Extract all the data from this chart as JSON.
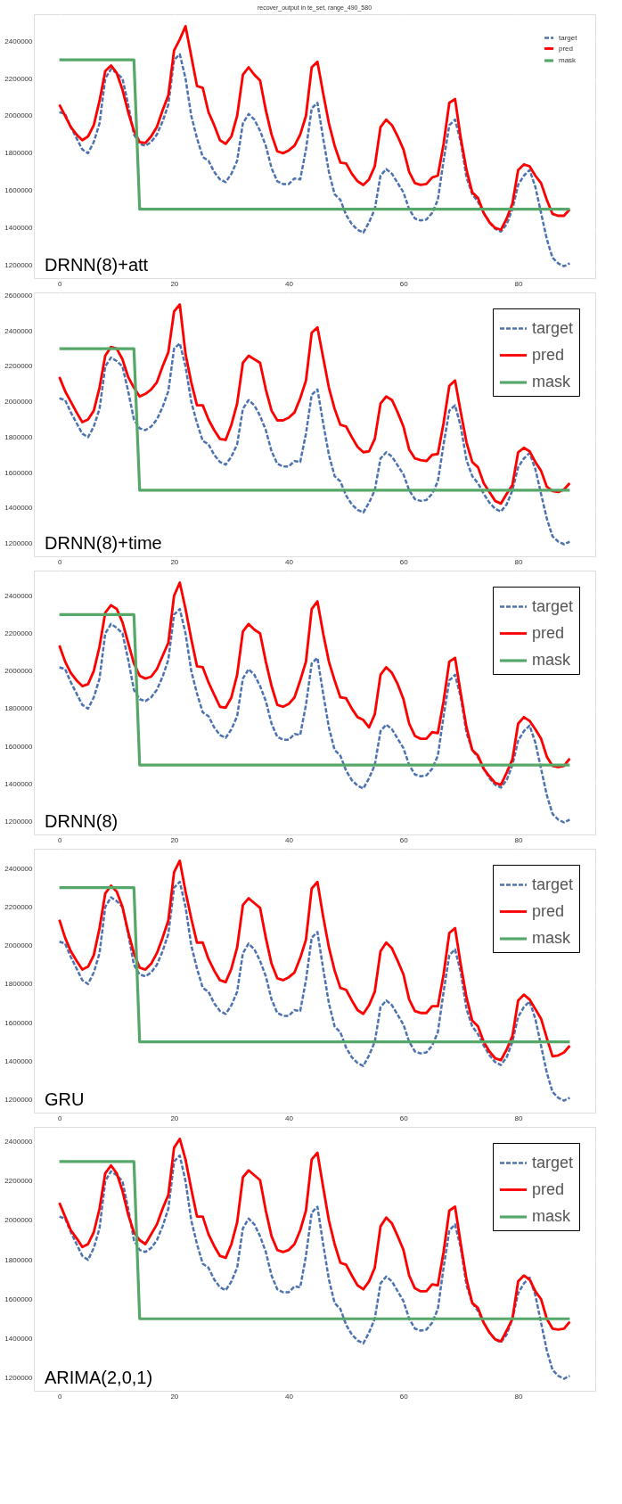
{
  "chart_data": [
    {
      "type": "line",
      "title": "recover_output in te_set, range_490_580",
      "annotations": [
        "DRNN(8)+att"
      ],
      "x": [
        0,
        1,
        2,
        3,
        4,
        5,
        6,
        7,
        8,
        9,
        10,
        11,
        12,
        13,
        14,
        15,
        16,
        17,
        18,
        19,
        20,
        21,
        22,
        23,
        24,
        25,
        26,
        27,
        28,
        29,
        30,
        31,
        32,
        33,
        34,
        35,
        36,
        37,
        38,
        39,
        40,
        41,
        42,
        43,
        44,
        45,
        46,
        47,
        48,
        49,
        50,
        51,
        52,
        53,
        54,
        55,
        56,
        57,
        58,
        59,
        60,
        61,
        62,
        63,
        64,
        65,
        66,
        67,
        68,
        69,
        70,
        71,
        72,
        73,
        74,
        75,
        76,
        77,
        78,
        79,
        80,
        81,
        82,
        83,
        84,
        85,
        86,
        87,
        88,
        89
      ],
      "xlim": [
        -4.45,
        93.45
      ],
      "xticks": [
        0,
        20,
        40,
        60,
        80
      ],
      "ylim": [
        1131000,
        2544000
      ],
      "yticks": [
        1200000,
        1400000,
        1600000,
        1800000,
        2000000,
        2200000,
        2400000
      ],
      "grid": true,
      "legend": "top right",
      "series": [
        {
          "name": "target",
          "color": "#4c72b0",
          "line_style": "dashed",
          "values": [
            2020000,
            2010000,
            1940000,
            1880000,
            1820000,
            1800000,
            1860000,
            1960000,
            2200000,
            2250000,
            2230000,
            2200000,
            2060000,
            1900000,
            1850000,
            1840000,
            1860000,
            1900000,
            1970000,
            2060000,
            2300000,
            2330000,
            2200000,
            2000000,
            1880000,
            1780000,
            1760000,
            1700000,
            1660000,
            1645000,
            1690000,
            1760000,
            1960000,
            2010000,
            1980000,
            1920000,
            1840000,
            1720000,
            1650000,
            1635000,
            1635000,
            1665000,
            1660000,
            1820000,
            2040000,
            2070000,
            1880000,
            1700000,
            1580000,
            1550000,
            1470000,
            1420000,
            1390000,
            1375000,
            1430000,
            1500000,
            1680000,
            1715000,
            1690000,
            1640000,
            1590000,
            1500000,
            1450000,
            1440000,
            1445000,
            1480000,
            1550000,
            1760000,
            1950000,
            1980000,
            1860000,
            1670000,
            1580000,
            1540000,
            1480000,
            1430000,
            1395000,
            1380000,
            1420000,
            1500000,
            1630000,
            1680000,
            1710000,
            1620000,
            1480000,
            1340000,
            1240000,
            1210000,
            1195000,
            1210000
          ]
        },
        {
          "name": "pred",
          "color": "#ff0000",
          "line_style": "solid",
          "values": [
            2060000,
            2000000,
            1940000,
            1900000,
            1870000,
            1890000,
            1950000,
            2080000,
            2240000,
            2270000,
            2230000,
            2140000,
            2020000,
            1920000,
            1860000,
            1855000,
            1890000,
            1940000,
            2030000,
            2110000,
            2350000,
            2410000,
            2480000,
            2320000,
            2160000,
            2150000,
            2020000,
            1950000,
            1870000,
            1850000,
            1890000,
            2000000,
            2220000,
            2260000,
            2220000,
            2190000,
            2030000,
            1900000,
            1810000,
            1800000,
            1815000,
            1840000,
            1900000,
            2000000,
            2260000,
            2290000,
            2120000,
            1960000,
            1840000,
            1750000,
            1745000,
            1690000,
            1650000,
            1630000,
            1660000,
            1730000,
            1940000,
            1980000,
            1950000,
            1890000,
            1820000,
            1700000,
            1640000,
            1630000,
            1635000,
            1670000,
            1680000,
            1850000,
            2070000,
            2090000,
            1880000,
            1710000,
            1590000,
            1560000,
            1480000,
            1430000,
            1400000,
            1390000,
            1450000,
            1530000,
            1710000,
            1740000,
            1730000,
            1680000,
            1640000,
            1550000,
            1475000,
            1465000,
            1465000,
            1500000
          ]
        },
        {
          "name": "mask",
          "color": "#55a868",
          "line_style": "solid",
          "values": [
            2300000,
            2300000,
            2300000,
            2300000,
            2300000,
            2300000,
            2300000,
            2300000,
            2300000,
            2300000,
            2300000,
            2300000,
            2300000,
            2300000,
            1500000,
            1500000,
            1500000,
            1500000,
            1500000,
            1500000,
            1500000,
            1500000,
            1500000,
            1500000,
            1500000,
            1500000,
            1500000,
            1500000,
            1500000,
            1500000,
            1500000,
            1500000,
            1500000,
            1500000,
            1500000,
            1500000,
            1500000,
            1500000,
            1500000,
            1500000,
            1500000,
            1500000,
            1500000,
            1500000,
            1500000,
            1500000,
            1500000,
            1500000,
            1500000,
            1500000,
            1500000,
            1500000,
            1500000,
            1500000,
            1500000,
            1500000,
            1500000,
            1500000,
            1500000,
            1500000,
            1500000,
            1500000,
            1500000,
            1500000,
            1500000,
            1500000,
            1500000,
            1500000,
            1500000,
            1500000,
            1500000,
            1500000,
            1500000,
            1500000,
            1500000,
            1500000,
            1500000,
            1500000,
            1500000,
            1500000,
            1500000,
            1500000,
            1500000,
            1500000,
            1500000,
            1500000,
            1500000,
            1500000,
            1500000,
            1500000
          ]
        }
      ]
    },
    {
      "type": "line",
      "annotations": [
        "DRNN(8)+time"
      ],
      "x": [
        0,
        1,
        2,
        3,
        4,
        5,
        6,
        7,
        8,
        9,
        10,
        11,
        12,
        13,
        14,
        15,
        16,
        17,
        18,
        19,
        20,
        21,
        22,
        23,
        24,
        25,
        26,
        27,
        28,
        29,
        30,
        31,
        32,
        33,
        34,
        35,
        36,
        37,
        38,
        39,
        40,
        41,
        42,
        43,
        44,
        45,
        46,
        47,
        48,
        49,
        50,
        51,
        52,
        53,
        54,
        55,
        56,
        57,
        58,
        59,
        60,
        61,
        62,
        63,
        64,
        65,
        66,
        67,
        68,
        69,
        70,
        71,
        72,
        73,
        74,
        75,
        76,
        77,
        78,
        79,
        80,
        81,
        82,
        83,
        84,
        85,
        86,
        87,
        88,
        89
      ],
      "xlim": [
        -4.45,
        93.45
      ],
      "xticks": [
        0,
        20,
        40,
        60,
        80
      ],
      "ylim": [
        1127000,
        2618000
      ],
      "yticks": [
        1200000,
        1400000,
        1600000,
        1800000,
        2000000,
        2200000,
        2400000,
        2600000
      ],
      "grid": true,
      "legend": "top right",
      "series": [
        {
          "name": "target",
          "color": "#4c72b0",
          "line_style": "dashed",
          "values": [
            2020000,
            2010000,
            1940000,
            1880000,
            1820000,
            1800000,
            1860000,
            1960000,
            2200000,
            2250000,
            2230000,
            2200000,
            2060000,
            1900000,
            1850000,
            1840000,
            1860000,
            1900000,
            1970000,
            2060000,
            2300000,
            2330000,
            2200000,
            2000000,
            1880000,
            1780000,
            1760000,
            1700000,
            1660000,
            1645000,
            1690000,
            1760000,
            1960000,
            2010000,
            1980000,
            1920000,
            1840000,
            1720000,
            1650000,
            1635000,
            1635000,
            1665000,
            1660000,
            1820000,
            2040000,
            2070000,
            1880000,
            1700000,
            1580000,
            1550000,
            1470000,
            1420000,
            1390000,
            1375000,
            1430000,
            1500000,
            1680000,
            1715000,
            1690000,
            1640000,
            1590000,
            1500000,
            1450000,
            1440000,
            1445000,
            1480000,
            1550000,
            1760000,
            1950000,
            1980000,
            1860000,
            1670000,
            1580000,
            1540000,
            1480000,
            1430000,
            1395000,
            1380000,
            1420000,
            1500000,
            1630000,
            1680000,
            1710000,
            1620000,
            1480000,
            1340000,
            1240000,
            1210000,
            1195000,
            1210000
          ]
        },
        {
          "name": "pred",
          "color": "#ff0000",
          "line_style": "solid",
          "values": [
            2140000,
            2060000,
            2000000,
            1940000,
            1885000,
            1900000,
            1950000,
            2080000,
            2260000,
            2310000,
            2300000,
            2240000,
            2140000,
            2080000,
            2030000,
            2045000,
            2070000,
            2110000,
            2200000,
            2280000,
            2510000,
            2550000,
            2270000,
            2110000,
            1980000,
            1980000,
            1900000,
            1840000,
            1790000,
            1785000,
            1870000,
            1990000,
            2220000,
            2260000,
            2240000,
            2220000,
            2070000,
            1950000,
            1895000,
            1895000,
            1910000,
            1940000,
            2020000,
            2120000,
            2390000,
            2420000,
            2250000,
            2080000,
            1960000,
            1870000,
            1860000,
            1800000,
            1745000,
            1715000,
            1720000,
            1790000,
            1990000,
            2030000,
            2010000,
            1940000,
            1860000,
            1730000,
            1680000,
            1670000,
            1665000,
            1700000,
            1705000,
            1880000,
            2090000,
            2120000,
            1940000,
            1770000,
            1660000,
            1630000,
            1540000,
            1490000,
            1440000,
            1425000,
            1480000,
            1530000,
            1715000,
            1740000,
            1720000,
            1660000,
            1610000,
            1520000,
            1495000,
            1490000,
            1505000,
            1540000
          ]
        },
        {
          "name": "mask",
          "color": "#55a868",
          "line_style": "solid",
          "values": [
            2300000,
            2300000,
            2300000,
            2300000,
            2300000,
            2300000,
            2300000,
            2300000,
            2300000,
            2300000,
            2300000,
            2300000,
            2300000,
            2300000,
            1500000,
            1500000,
            1500000,
            1500000,
            1500000,
            1500000,
            1500000,
            1500000,
            1500000,
            1500000,
            1500000,
            1500000,
            1500000,
            1500000,
            1500000,
            1500000,
            1500000,
            1500000,
            1500000,
            1500000,
            1500000,
            1500000,
            1500000,
            1500000,
            1500000,
            1500000,
            1500000,
            1500000,
            1500000,
            1500000,
            1500000,
            1500000,
            1500000,
            1500000,
            1500000,
            1500000,
            1500000,
            1500000,
            1500000,
            1500000,
            1500000,
            1500000,
            1500000,
            1500000,
            1500000,
            1500000,
            1500000,
            1500000,
            1500000,
            1500000,
            1500000,
            1500000,
            1500000,
            1500000,
            1500000,
            1500000,
            1500000,
            1500000,
            1500000,
            1500000,
            1500000,
            1500000,
            1500000,
            1500000,
            1500000,
            1500000,
            1500000,
            1500000,
            1500000,
            1500000,
            1500000,
            1500000,
            1500000,
            1500000,
            1500000,
            1500000
          ]
        }
      ]
    },
    {
      "type": "line",
      "annotations": [
        "DRNN(8)"
      ],
      "x": [
        0,
        1,
        2,
        3,
        4,
        5,
        6,
        7,
        8,
        9,
        10,
        11,
        12,
        13,
        14,
        15,
        16,
        17,
        18,
        19,
        20,
        21,
        22,
        23,
        24,
        25,
        26,
        27,
        28,
        29,
        30,
        31,
        32,
        33,
        34,
        35,
        36,
        37,
        38,
        39,
        40,
        41,
        42,
        43,
        44,
        45,
        46,
        47,
        48,
        49,
        50,
        51,
        52,
        53,
        54,
        55,
        56,
        57,
        58,
        59,
        60,
        61,
        62,
        63,
        64,
        65,
        66,
        67,
        68,
        69,
        70,
        71,
        72,
        73,
        74,
        75,
        76,
        77,
        78,
        79,
        80,
        81,
        82,
        83,
        84,
        85,
        86,
        87,
        88,
        89
      ],
      "xlim": [
        -4.45,
        93.45
      ],
      "xticks": [
        0,
        20,
        40,
        60,
        80
      ],
      "ylim": [
        1131000,
        2534000
      ],
      "yticks": [
        1200000,
        1400000,
        1600000,
        1800000,
        2000000,
        2200000,
        2400000
      ],
      "grid": true,
      "legend": "top right",
      "series": [
        {
          "name": "target",
          "color": "#4c72b0",
          "line_style": "dashed",
          "values": [
            2020000,
            2010000,
            1940000,
            1880000,
            1820000,
            1800000,
            1860000,
            1960000,
            2200000,
            2250000,
            2230000,
            2200000,
            2060000,
            1900000,
            1850000,
            1840000,
            1860000,
            1900000,
            1970000,
            2060000,
            2300000,
            2330000,
            2200000,
            2000000,
            1880000,
            1780000,
            1760000,
            1700000,
            1660000,
            1645000,
            1690000,
            1760000,
            1960000,
            2010000,
            1980000,
            1920000,
            1840000,
            1720000,
            1650000,
            1635000,
            1635000,
            1665000,
            1660000,
            1820000,
            2040000,
            2070000,
            1880000,
            1700000,
            1580000,
            1550000,
            1470000,
            1420000,
            1390000,
            1375000,
            1430000,
            1500000,
            1680000,
            1715000,
            1690000,
            1640000,
            1590000,
            1500000,
            1450000,
            1440000,
            1445000,
            1480000,
            1550000,
            1760000,
            1950000,
            1980000,
            1860000,
            1670000,
            1580000,
            1540000,
            1480000,
            1430000,
            1395000,
            1380000,
            1420000,
            1500000,
            1630000,
            1680000,
            1710000,
            1620000,
            1480000,
            1340000,
            1240000,
            1210000,
            1195000,
            1210000
          ]
        },
        {
          "name": "pred",
          "color": "#ff0000",
          "line_style": "solid",
          "values": [
            2136000,
            2050000,
            1990000,
            1950000,
            1920000,
            1930000,
            2000000,
            2130000,
            2310000,
            2350000,
            2330000,
            2260000,
            2150000,
            2040000,
            1975000,
            1960000,
            1970000,
            2010000,
            2080000,
            2150000,
            2400000,
            2470000,
            2330000,
            2170000,
            2025000,
            2020000,
            1940000,
            1875000,
            1810000,
            1805000,
            1860000,
            1980000,
            2210000,
            2250000,
            2220000,
            2200000,
            2050000,
            1920000,
            1820000,
            1810000,
            1825000,
            1860000,
            1950000,
            2050000,
            2330000,
            2370000,
            2200000,
            2050000,
            1950000,
            1860000,
            1855000,
            1800000,
            1755000,
            1740000,
            1700000,
            1770000,
            1980000,
            2020000,
            1990000,
            1930000,
            1850000,
            1720000,
            1655000,
            1640000,
            1640000,
            1675000,
            1670000,
            1840000,
            2050000,
            2070000,
            1880000,
            1700000,
            1580000,
            1550000,
            1480000,
            1440000,
            1405000,
            1395000,
            1460000,
            1530000,
            1720000,
            1755000,
            1735000,
            1690000,
            1640000,
            1545000,
            1495000,
            1490000,
            1495000,
            1535000
          ]
        },
        {
          "name": "mask",
          "color": "#55a868",
          "line_style": "solid",
          "values": [
            2300000,
            2300000,
            2300000,
            2300000,
            2300000,
            2300000,
            2300000,
            2300000,
            2300000,
            2300000,
            2300000,
            2300000,
            2300000,
            2300000,
            1500000,
            1500000,
            1500000,
            1500000,
            1500000,
            1500000,
            1500000,
            1500000,
            1500000,
            1500000,
            1500000,
            1500000,
            1500000,
            1500000,
            1500000,
            1500000,
            1500000,
            1500000,
            1500000,
            1500000,
            1500000,
            1500000,
            1500000,
            1500000,
            1500000,
            1500000,
            1500000,
            1500000,
            1500000,
            1500000,
            1500000,
            1500000,
            1500000,
            1500000,
            1500000,
            1500000,
            1500000,
            1500000,
            1500000,
            1500000,
            1500000,
            1500000,
            1500000,
            1500000,
            1500000,
            1500000,
            1500000,
            1500000,
            1500000,
            1500000,
            1500000,
            1500000,
            1500000,
            1500000,
            1500000,
            1500000,
            1500000,
            1500000,
            1500000,
            1500000,
            1500000,
            1500000,
            1500000,
            1500000,
            1500000,
            1500000,
            1500000,
            1500000,
            1500000,
            1500000,
            1500000,
            1500000,
            1500000,
            1500000,
            1500000,
            1500000
          ]
        }
      ]
    },
    {
      "type": "line",
      "annotations": [
        "GRU"
      ],
      "x": [
        0,
        1,
        2,
        3,
        4,
        5,
        6,
        7,
        8,
        9,
        10,
        11,
        12,
        13,
        14,
        15,
        16,
        17,
        18,
        19,
        20,
        21,
        22,
        23,
        24,
        25,
        26,
        27,
        28,
        29,
        30,
        31,
        32,
        33,
        34,
        35,
        36,
        37,
        38,
        39,
        40,
        41,
        42,
        43,
        44,
        45,
        46,
        47,
        48,
        49,
        50,
        51,
        52,
        53,
        54,
        55,
        56,
        57,
        58,
        59,
        60,
        61,
        62,
        63,
        64,
        65,
        66,
        67,
        68,
        69,
        70,
        71,
        72,
        73,
        74,
        75,
        76,
        77,
        78,
        79,
        80,
        81,
        82,
        83,
        84,
        85,
        86,
        87,
        88,
        89
      ],
      "xlim": [
        -4.45,
        93.45
      ],
      "xticks": [
        0,
        20,
        40,
        60,
        80
      ],
      "ylim": [
        1133000,
        2502000
      ],
      "yticks": [
        1200000,
        1400000,
        1600000,
        1800000,
        2000000,
        2200000,
        2400000
      ],
      "grid": true,
      "legend": "top right",
      "series": [
        {
          "name": "target",
          "color": "#4c72b0",
          "line_style": "dashed",
          "values": [
            2020000,
            2010000,
            1940000,
            1880000,
            1820000,
            1800000,
            1860000,
            1960000,
            2200000,
            2250000,
            2230000,
            2200000,
            2060000,
            1900000,
            1850000,
            1840000,
            1860000,
            1900000,
            1970000,
            2060000,
            2300000,
            2330000,
            2200000,
            2000000,
            1880000,
            1780000,
            1760000,
            1700000,
            1660000,
            1645000,
            1690000,
            1760000,
            1960000,
            2010000,
            1980000,
            1920000,
            1840000,
            1720000,
            1650000,
            1635000,
            1635000,
            1665000,
            1660000,
            1820000,
            2040000,
            2070000,
            1880000,
            1700000,
            1580000,
            1550000,
            1470000,
            1420000,
            1390000,
            1375000,
            1430000,
            1500000,
            1680000,
            1715000,
            1690000,
            1640000,
            1590000,
            1500000,
            1450000,
            1440000,
            1445000,
            1480000,
            1550000,
            1760000,
            1950000,
            1980000,
            1860000,
            1670000,
            1580000,
            1540000,
            1480000,
            1430000,
            1395000,
            1380000,
            1420000,
            1500000,
            1630000,
            1680000,
            1710000,
            1620000,
            1480000,
            1340000,
            1240000,
            1210000,
            1195000,
            1210000
          ]
        },
        {
          "name": "pred",
          "color": "#ff0000",
          "line_style": "solid",
          "values": [
            2134000,
            2040000,
            1970000,
            1920000,
            1875000,
            1890000,
            1950000,
            2090000,
            2270000,
            2310000,
            2280000,
            2200000,
            2070000,
            1960000,
            1885000,
            1875000,
            1905000,
            1960000,
            2040000,
            2130000,
            2380000,
            2440000,
            2280000,
            2140000,
            2015000,
            2015000,
            1930000,
            1870000,
            1820000,
            1810000,
            1880000,
            1990000,
            2210000,
            2245000,
            2220000,
            2195000,
            2040000,
            1905000,
            1830000,
            1820000,
            1835000,
            1860000,
            1935000,
            2030000,
            2295000,
            2330000,
            2150000,
            1990000,
            1870000,
            1780000,
            1770000,
            1715000,
            1665000,
            1645000,
            1690000,
            1760000,
            1970000,
            2015000,
            1985000,
            1920000,
            1850000,
            1720000,
            1660000,
            1650000,
            1650000,
            1685000,
            1685000,
            1850000,
            2065000,
            2090000,
            1900000,
            1730000,
            1610000,
            1580000,
            1500000,
            1450000,
            1415000,
            1405000,
            1460000,
            1530000,
            1715000,
            1745000,
            1720000,
            1670000,
            1620000,
            1520000,
            1425000,
            1430000,
            1445000,
            1480000
          ]
        },
        {
          "name": "mask",
          "color": "#55a868",
          "line_style": "solid",
          "values": [
            2300000,
            2300000,
            2300000,
            2300000,
            2300000,
            2300000,
            2300000,
            2300000,
            2300000,
            2300000,
            2300000,
            2300000,
            2300000,
            2300000,
            1500000,
            1500000,
            1500000,
            1500000,
            1500000,
            1500000,
            1500000,
            1500000,
            1500000,
            1500000,
            1500000,
            1500000,
            1500000,
            1500000,
            1500000,
            1500000,
            1500000,
            1500000,
            1500000,
            1500000,
            1500000,
            1500000,
            1500000,
            1500000,
            1500000,
            1500000,
            1500000,
            1500000,
            1500000,
            1500000,
            1500000,
            1500000,
            1500000,
            1500000,
            1500000,
            1500000,
            1500000,
            1500000,
            1500000,
            1500000,
            1500000,
            1500000,
            1500000,
            1500000,
            1500000,
            1500000,
            1500000,
            1500000,
            1500000,
            1500000,
            1500000,
            1500000,
            1500000,
            1500000,
            1500000,
            1500000,
            1500000,
            1500000,
            1500000,
            1500000,
            1500000,
            1500000,
            1500000,
            1500000,
            1500000,
            1500000,
            1500000,
            1500000,
            1500000,
            1500000,
            1500000,
            1500000,
            1500000,
            1500000,
            1500000,
            1500000
          ]
        }
      ]
    },
    {
      "type": "line",
      "annotations": [
        "ARIMA(2,0,1)"
      ],
      "x": [
        0,
        1,
        2,
        3,
        4,
        5,
        6,
        7,
        8,
        9,
        10,
        11,
        12,
        13,
        14,
        15,
        16,
        17,
        18,
        19,
        20,
        21,
        22,
        23,
        24,
        25,
        26,
        27,
        28,
        29,
        30,
        31,
        32,
        33,
        34,
        35,
        36,
        37,
        38,
        39,
        40,
        41,
        42,
        43,
        44,
        45,
        46,
        47,
        48,
        49,
        50,
        51,
        52,
        53,
        54,
        55,
        56,
        57,
        58,
        59,
        60,
        61,
        62,
        63,
        64,
        65,
        66,
        67,
        68,
        69,
        70,
        71,
        72,
        73,
        74,
        75,
        76,
        77,
        78,
        79,
        80,
        81,
        82,
        83,
        84,
        85,
        86,
        87,
        88,
        89
      ],
      "xlim": [
        -4.45,
        93.45
      ],
      "xticks": [
        0,
        20,
        40,
        60,
        80
      ],
      "ylim": [
        1134000,
        2476000
      ],
      "yticks": [
        1200000,
        1400000,
        1600000,
        1800000,
        2000000,
        2200000,
        2400000
      ],
      "grid": true,
      "legend": "top right",
      "series": [
        {
          "name": "target",
          "color": "#4c72b0",
          "line_style": "dashed",
          "values": [
            2020000,
            2010000,
            1940000,
            1880000,
            1820000,
            1800000,
            1860000,
            1960000,
            2200000,
            2250000,
            2230000,
            2200000,
            2060000,
            1900000,
            1850000,
            1840000,
            1860000,
            1900000,
            1970000,
            2060000,
            2300000,
            2330000,
            2200000,
            2000000,
            1880000,
            1780000,
            1760000,
            1700000,
            1660000,
            1645000,
            1690000,
            1760000,
            1960000,
            2010000,
            1980000,
            1920000,
            1840000,
            1720000,
            1650000,
            1635000,
            1635000,
            1665000,
            1660000,
            1820000,
            2040000,
            2070000,
            1880000,
            1700000,
            1580000,
            1550000,
            1470000,
            1420000,
            1390000,
            1375000,
            1430000,
            1500000,
            1680000,
            1715000,
            1690000,
            1640000,
            1590000,
            1500000,
            1450000,
            1440000,
            1445000,
            1480000,
            1550000,
            1760000,
            1950000,
            1980000,
            1860000,
            1670000,
            1580000,
            1540000,
            1480000,
            1430000,
            1395000,
            1380000,
            1420000,
            1500000,
            1630000,
            1680000,
            1710000,
            1620000,
            1480000,
            1340000,
            1240000,
            1210000,
            1195000,
            1210000
          ]
        },
        {
          "name": "pred",
          "color": "#ff0000",
          "line_style": "solid",
          "values": [
            2090000,
            2020000,
            1950000,
            1910000,
            1865000,
            1880000,
            1940000,
            2060000,
            2240000,
            2280000,
            2240000,
            2150000,
            2030000,
            1940000,
            1900000,
            1880000,
            1930000,
            1980000,
            2060000,
            2130000,
            2370000,
            2415000,
            2310000,
            2160000,
            2020000,
            2020000,
            1930000,
            1870000,
            1820000,
            1810000,
            1880000,
            1990000,
            2220000,
            2255000,
            2230000,
            2205000,
            2050000,
            1920000,
            1850000,
            1840000,
            1850000,
            1880000,
            1950000,
            2050000,
            2310000,
            2345000,
            2170000,
            2000000,
            1880000,
            1785000,
            1775000,
            1720000,
            1670000,
            1650000,
            1690000,
            1760000,
            1970000,
            2015000,
            1985000,
            1920000,
            1850000,
            1720000,
            1655000,
            1640000,
            1640000,
            1675000,
            1670000,
            1840000,
            2050000,
            2070000,
            1880000,
            1700000,
            1580000,
            1555000,
            1480000,
            1430000,
            1395000,
            1385000,
            1440000,
            1500000,
            1690000,
            1720000,
            1700000,
            1640000,
            1600000,
            1500000,
            1450000,
            1445000,
            1450000,
            1485000
          ]
        },
        {
          "name": "mask",
          "color": "#55a868",
          "line_style": "solid",
          "values": [
            2300000,
            2300000,
            2300000,
            2300000,
            2300000,
            2300000,
            2300000,
            2300000,
            2300000,
            2300000,
            2300000,
            2300000,
            2300000,
            2300000,
            1500000,
            1500000,
            1500000,
            1500000,
            1500000,
            1500000,
            1500000,
            1500000,
            1500000,
            1500000,
            1500000,
            1500000,
            1500000,
            1500000,
            1500000,
            1500000,
            1500000,
            1500000,
            1500000,
            1500000,
            1500000,
            1500000,
            1500000,
            1500000,
            1500000,
            1500000,
            1500000,
            1500000,
            1500000,
            1500000,
            1500000,
            1500000,
            1500000,
            1500000,
            1500000,
            1500000,
            1500000,
            1500000,
            1500000,
            1500000,
            1500000,
            1500000,
            1500000,
            1500000,
            1500000,
            1500000,
            1500000,
            1500000,
            1500000,
            1500000,
            1500000,
            1500000,
            1500000,
            1500000,
            1500000,
            1500000,
            1500000,
            1500000,
            1500000,
            1500000,
            1500000,
            1500000,
            1500000,
            1500000,
            1500000,
            1500000,
            1500000,
            1500000,
            1500000,
            1500000,
            1500000,
            1500000,
            1500000,
            1500000,
            1500000,
            1500000
          ]
        }
      ]
    }
  ]
}
